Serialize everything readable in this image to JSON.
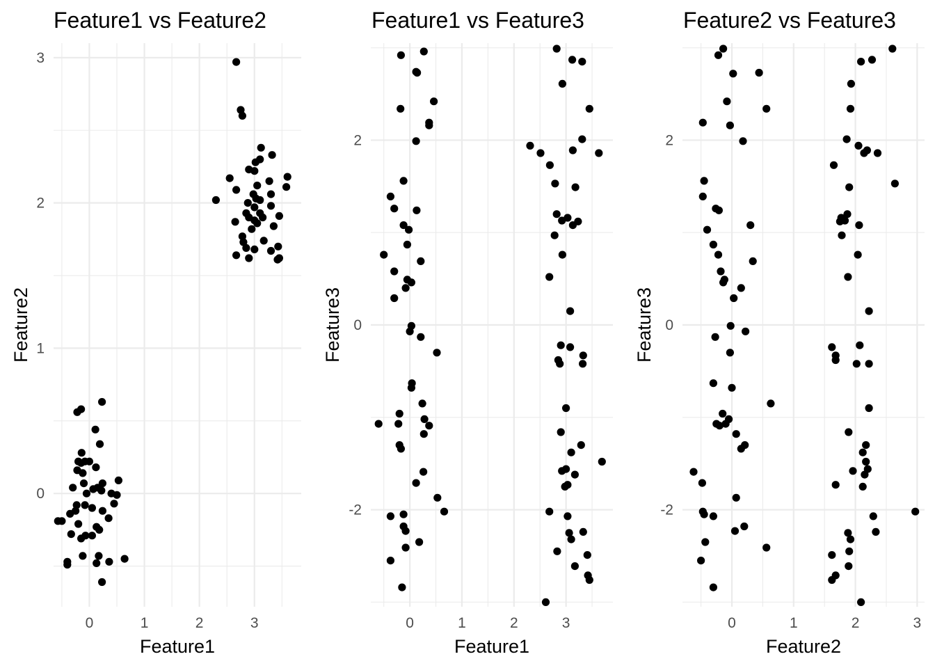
{
  "chart_data": [
    {
      "type": "scatter",
      "title": "Feature1 vs Feature2",
      "xlabel": "Feature1",
      "ylabel": "Feature2",
      "xlim": [
        -0.65,
        3.85
      ],
      "ylim": [
        -0.78,
        3.1
      ],
      "x_ticks": [
        0,
        1,
        2,
        3
      ],
      "y_ticks": [
        0,
        1,
        2,
        3
      ],
      "grid": true,
      "points": [
        [
          2.67,
          2.97
        ],
        [
          2.75,
          2.64
        ],
        [
          2.78,
          2.6
        ],
        [
          3.12,
          2.38
        ],
        [
          3.32,
          2.33
        ],
        [
          3.1,
          2.3
        ],
        [
          3.02,
          2.28
        ],
        [
          2.9,
          2.23
        ],
        [
          3.0,
          2.22
        ],
        [
          3.6,
          2.18
        ],
        [
          2.55,
          2.17
        ],
        [
          3.27,
          2.15
        ],
        [
          3.05,
          2.12
        ],
        [
          3.58,
          2.11
        ],
        [
          2.67,
          2.09
        ],
        [
          2.98,
          2.06
        ],
        [
          3.3,
          2.06
        ],
        [
          3.03,
          2.03
        ],
        [
          2.3,
          2.02
        ],
        [
          3.1,
          2.02
        ],
        [
          2.88,
          2.0
        ],
        [
          3.3,
          1.98
        ],
        [
          3.0,
          1.97
        ],
        [
          2.85,
          1.93
        ],
        [
          3.1,
          1.93
        ],
        [
          3.15,
          1.9
        ],
        [
          3.45,
          1.91
        ],
        [
          2.9,
          1.9
        ],
        [
          3.0,
          1.88
        ],
        [
          2.65,
          1.87
        ],
        [
          3.05,
          1.86
        ],
        [
          3.35,
          1.84
        ],
        [
          2.95,
          1.82
        ],
        [
          2.78,
          1.77
        ],
        [
          3.17,
          1.74
        ],
        [
          2.8,
          1.73
        ],
        [
          2.85,
          1.69
        ],
        [
          3.43,
          1.7
        ],
        [
          3.0,
          1.68
        ],
        [
          3.3,
          1.67
        ],
        [
          2.67,
          1.64
        ],
        [
          2.9,
          1.62
        ],
        [
          3.42,
          1.61
        ],
        [
          3.45,
          1.62
        ],
        [
          0.23,
          0.63
        ],
        [
          -0.15,
          0.58
        ],
        [
          -0.22,
          0.56
        ],
        [
          0.11,
          0.44
        ],
        [
          0.19,
          0.34
        ],
        [
          -0.14,
          0.28
        ],
        [
          -0.2,
          0.22
        ],
        [
          -0.08,
          0.22
        ],
        [
          -0.15,
          0.21
        ],
        [
          0.0,
          0.22
        ],
        [
          0.12,
          0.18
        ],
        [
          -0.22,
          0.16
        ],
        [
          -0.12,
          0.14
        ],
        [
          0.53,
          0.09
        ],
        [
          -0.1,
          0.07
        ],
        [
          -0.3,
          0.04
        ],
        [
          0.07,
          0.03
        ],
        [
          0.15,
          0.04
        ],
        [
          0.24,
          0.07
        ],
        [
          0.22,
          0.02
        ],
        [
          -0.05,
          0.0
        ],
        [
          0.4,
          0.0
        ],
        [
          0.5,
          -0.01
        ],
        [
          0.45,
          -0.07
        ],
        [
          -0.23,
          -0.08
        ],
        [
          -0.08,
          -0.08
        ],
        [
          0.05,
          -0.1
        ],
        [
          -0.25,
          -0.12
        ],
        [
          0.24,
          -0.12
        ],
        [
          -0.35,
          -0.14
        ],
        [
          0.35,
          -0.17
        ],
        [
          -0.57,
          -0.19
        ],
        [
          -0.5,
          -0.19
        ],
        [
          -0.2,
          -0.21
        ],
        [
          0.13,
          -0.23
        ],
        [
          0.18,
          -0.25
        ],
        [
          -0.33,
          -0.28
        ],
        [
          -0.07,
          -0.29
        ],
        [
          0.05,
          -0.29
        ],
        [
          -0.15,
          -0.31
        ],
        [
          -0.12,
          -0.43
        ],
        [
          0.17,
          -0.43
        ],
        [
          0.64,
          -0.45
        ],
        [
          -0.4,
          -0.47
        ],
        [
          0.36,
          -0.47
        ],
        [
          0.13,
          -0.48
        ],
        [
          -0.4,
          -0.49
        ],
        [
          0.23,
          -0.61
        ]
      ]
    },
    {
      "type": "scatter",
      "title": "Feature1 vs Feature3",
      "xlabel": "Feature1",
      "ylabel": "Feature3",
      "xlim": [
        -0.75,
        3.9
      ],
      "ylim": [
        -3.05,
        3.05
      ],
      "x_ticks": [
        0,
        1,
        2,
        3
      ],
      "y_ticks": [
        -2,
        0,
        2
      ],
      "grid": true,
      "points": [
        [
          0.27,
          2.96
        ],
        [
          -0.17,
          2.92
        ],
        [
          0.14,
          2.73
        ],
        [
          0.12,
          2.74
        ],
        [
          0.46,
          2.42
        ],
        [
          -0.18,
          2.34
        ],
        [
          0.37,
          2.19
        ],
        [
          0.37,
          2.16
        ],
        [
          0.12,
          1.99
        ],
        [
          -0.12,
          1.56
        ],
        [
          -0.37,
          1.39
        ],
        [
          -0.3,
          1.26
        ],
        [
          0.13,
          1.24
        ],
        [
          -0.12,
          1.08
        ],
        [
          -0.02,
          1.03
        ],
        [
          -0.05,
          0.87
        ],
        [
          -0.5,
          0.76
        ],
        [
          0.21,
          0.69
        ],
        [
          -0.3,
          0.58
        ],
        [
          -0.05,
          0.49
        ],
        [
          0.03,
          0.46
        ],
        [
          -0.08,
          0.4
        ],
        [
          -0.3,
          0.29
        ],
        [
          0.03,
          -0.01
        ],
        [
          0.0,
          -0.07
        ],
        [
          0.21,
          -0.13
        ],
        [
          0.52,
          -0.3
        ],
        [
          0.04,
          -0.63
        ],
        [
          0.03,
          -0.68
        ],
        [
          0.24,
          -0.85
        ],
        [
          -0.2,
          -0.96
        ],
        [
          0.28,
          -1.02
        ],
        [
          -0.6,
          -1.07
        ],
        [
          -0.22,
          -1.07
        ],
        [
          0.37,
          -1.09
        ],
        [
          0.27,
          -1.18
        ],
        [
          -0.2,
          -1.3
        ],
        [
          -0.17,
          -1.34
        ],
        [
          0.26,
          -1.59
        ],
        [
          0.12,
          -1.71
        ],
        [
          0.53,
          -1.87
        ],
        [
          0.66,
          -2.02
        ],
        [
          -0.12,
          -2.05
        ],
        [
          -0.37,
          -2.07
        ],
        [
          -0.12,
          -2.18
        ],
        [
          -0.08,
          -2.23
        ],
        [
          0.18,
          -2.35
        ],
        [
          -0.08,
          -2.41
        ],
        [
          -0.37,
          -2.55
        ],
        [
          -0.15,
          -2.84
        ],
        [
          2.82,
          2.99
        ],
        [
          3.12,
          2.87
        ],
        [
          3.31,
          2.85
        ],
        [
          2.93,
          2.61
        ],
        [
          3.45,
          2.34
        ],
        [
          3.31,
          2.01
        ],
        [
          2.31,
          1.94
        ],
        [
          2.51,
          1.86
        ],
        [
          3.63,
          1.86
        ],
        [
          3.13,
          1.89
        ],
        [
          2.69,
          1.73
        ],
        [
          2.79,
          1.53
        ],
        [
          3.18,
          1.49
        ],
        [
          2.82,
          1.2
        ],
        [
          3.03,
          1.16
        ],
        [
          2.92,
          1.13
        ],
        [
          3.23,
          1.12
        ],
        [
          3.13,
          1.08
        ],
        [
          2.78,
          0.97
        ],
        [
          2.93,
          0.76
        ],
        [
          2.68,
          0.52
        ],
        [
          3.08,
          0.15
        ],
        [
          2.9,
          -0.22
        ],
        [
          3.08,
          -0.24
        ],
        [
          3.33,
          -0.33
        ],
        [
          2.85,
          -0.38
        ],
        [
          2.88,
          -0.42
        ],
        [
          3.32,
          -0.42
        ],
        [
          3.0,
          -0.9
        ],
        [
          2.9,
          -1.16
        ],
        [
          3.29,
          -1.3
        ],
        [
          3.1,
          -1.38
        ],
        [
          3.69,
          -1.48
        ],
        [
          3.0,
          -1.56
        ],
        [
          2.92,
          -1.58
        ],
        [
          3.17,
          -1.62
        ],
        [
          3.03,
          -1.73
        ],
        [
          2.98,
          -1.75
        ],
        [
          2.68,
          -2.02
        ],
        [
          3.03,
          -2.07
        ],
        [
          3.33,
          -2.24
        ],
        [
          3.06,
          -2.25
        ],
        [
          3.1,
          -2.32
        ],
        [
          2.83,
          -2.45
        ],
        [
          3.41,
          -2.49
        ],
        [
          3.17,
          -2.61
        ],
        [
          3.42,
          -2.71
        ],
        [
          3.45,
          -2.76
        ],
        [
          2.61,
          -3.0
        ]
      ]
    },
    {
      "type": "scatter",
      "title": "Feature2 vs Feature3",
      "xlabel": "Feature2",
      "ylabel": "Feature3",
      "xlim": [
        -0.8,
        3.12
      ],
      "ylim": [
        -3.05,
        3.05
      ],
      "x_ticks": [
        0,
        1,
        2,
        3
      ],
      "y_ticks": [
        -2,
        0,
        2
      ],
      "grid": true,
      "points": [
        [
          -0.14,
          2.99
        ],
        [
          -0.22,
          2.92
        ],
        [
          0.44,
          2.73
        ],
        [
          0.02,
          2.72
        ],
        [
          -0.08,
          2.42
        ],
        [
          0.56,
          2.34
        ],
        [
          -0.47,
          2.19
        ],
        [
          -0.03,
          2.16
        ],
        [
          0.18,
          1.99
        ],
        [
          -0.45,
          1.56
        ],
        [
          -0.47,
          1.39
        ],
        [
          -0.26,
          1.26
        ],
        [
          -0.21,
          1.24
        ],
        [
          0.3,
          1.08
        ],
        [
          -0.4,
          1.03
        ],
        [
          -0.3,
          0.87
        ],
        [
          -0.22,
          0.76
        ],
        [
          0.34,
          0.69
        ],
        [
          -0.18,
          0.58
        ],
        [
          -0.12,
          0.49
        ],
        [
          -0.14,
          0.46
        ],
        [
          0.15,
          0.4
        ],
        [
          0.03,
          0.29
        ],
        [
          -0.02,
          -0.01
        ],
        [
          0.22,
          -0.07
        ],
        [
          -0.27,
          -0.13
        ],
        [
          -0.03,
          -0.3
        ],
        [
          -0.3,
          -0.63
        ],
        [
          0.0,
          -0.68
        ],
        [
          0.63,
          -0.85
        ],
        [
          -0.15,
          -0.96
        ],
        [
          -0.05,
          -1.02
        ],
        [
          -0.1,
          -1.07
        ],
        [
          -0.25,
          -1.07
        ],
        [
          -0.2,
          -1.09
        ],
        [
          0.07,
          -1.18
        ],
        [
          0.21,
          -1.3
        ],
        [
          0.15,
          -1.34
        ],
        [
          -0.62,
          -1.59
        ],
        [
          -0.48,
          -1.71
        ],
        [
          0.07,
          -1.87
        ],
        [
          -0.47,
          -2.02
        ],
        [
          -0.45,
          -2.05
        ],
        [
          -0.3,
          -2.07
        ],
        [
          0.2,
          -2.18
        ],
        [
          0.05,
          -2.23
        ],
        [
          -0.43,
          -2.35
        ],
        [
          0.56,
          -2.41
        ],
        [
          -0.5,
          -2.55
        ],
        [
          -0.3,
          -2.84
        ],
        [
          2.6,
          2.99
        ],
        [
          2.27,
          2.87
        ],
        [
          2.09,
          2.85
        ],
        [
          1.93,
          2.61
        ],
        [
          1.92,
          2.34
        ],
        [
          1.86,
          2.01
        ],
        [
          2.05,
          1.94
        ],
        [
          2.36,
          1.86
        ],
        [
          2.14,
          1.86
        ],
        [
          2.19,
          1.89
        ],
        [
          1.65,
          1.73
        ],
        [
          2.64,
          1.53
        ],
        [
          1.9,
          1.49
        ],
        [
          1.87,
          1.2
        ],
        [
          1.77,
          1.16
        ],
        [
          1.83,
          1.13
        ],
        [
          1.75,
          1.12
        ],
        [
          2.06,
          1.08
        ],
        [
          1.78,
          0.97
        ],
        [
          2.04,
          0.76
        ],
        [
          1.88,
          0.52
        ],
        [
          2.22,
          0.15
        ],
        [
          2.07,
          -0.22
        ],
        [
          1.62,
          -0.24
        ],
        [
          1.68,
          -0.33
        ],
        [
          1.68,
          -0.38
        ],
        [
          2.02,
          -0.42
        ],
        [
          2.22,
          -0.42
        ],
        [
          2.22,
          -0.9
        ],
        [
          1.89,
          -1.16
        ],
        [
          2.17,
          -1.3
        ],
        [
          2.12,
          -1.38
        ],
        [
          2.17,
          -1.48
        ],
        [
          2.2,
          -1.56
        ],
        [
          1.96,
          -1.58
        ],
        [
          2.15,
          -1.62
        ],
        [
          1.68,
          -1.73
        ],
        [
          2.12,
          -1.75
        ],
        [
          2.97,
          -2.02
        ],
        [
          2.29,
          -2.07
        ],
        [
          2.33,
          -2.24
        ],
        [
          1.88,
          -2.25
        ],
        [
          1.92,
          -2.32
        ],
        [
          1.9,
          -2.45
        ],
        [
          1.62,
          -2.49
        ],
        [
          1.89,
          -2.61
        ],
        [
          1.68,
          -2.71
        ],
        [
          1.62,
          -2.76
        ],
        [
          2.09,
          -3.0
        ]
      ]
    }
  ]
}
